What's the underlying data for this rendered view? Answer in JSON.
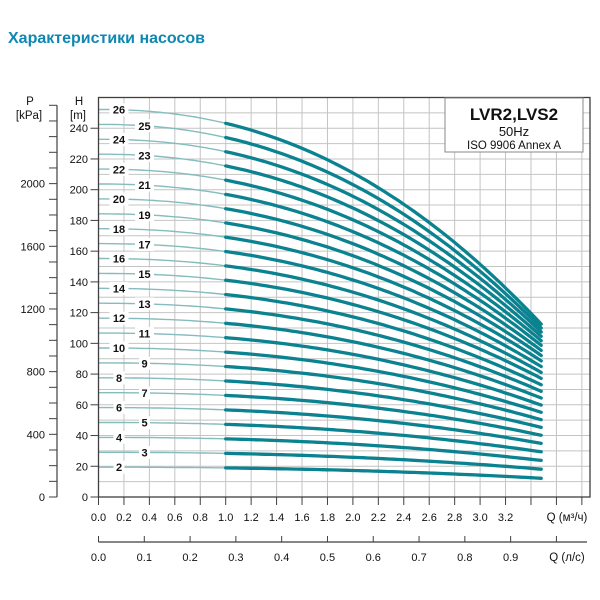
{
  "page": {
    "title": "Характеристики насосов",
    "title_color": "#0e87b2"
  },
  "chart_data": {
    "type": "line",
    "legend": {
      "model": "LVR2,LVS2",
      "frequency": "50Hz",
      "standard": "ISO 9906 Annex A"
    },
    "x_axis_m3h": {
      "label": "Q (м³/ч)",
      "tick_labels": [
        "0.0",
        "0.2",
        "0.4",
        "0.6",
        "0.8",
        "1.0",
        "1.2",
        "1.4",
        "1.6",
        "1.8",
        "2.0",
        "2.2",
        "2.4",
        "2.6",
        "2.8",
        "3.0",
        "3.2"
      ],
      "tick_step": 0.2,
      "ticks_to": 3.8,
      "axis_max": 3.864,
      "grid_step": 0.2
    },
    "x_axis_ls": {
      "label": "Q (л/с)",
      "tick_labels": [
        "0.0",
        "0.1",
        "0.2",
        "0.3",
        "0.4",
        "0.5",
        "0.6",
        "0.7",
        "0.8",
        "0.9"
      ],
      "tick_step": 0.1,
      "ticks_to": 1.0,
      "m3h_per_unit": 3.6
    },
    "y_axis_P": {
      "name": "P",
      "unit": "[kPa]",
      "tick_labels": [
        "0",
        "400",
        "800",
        "1200",
        "1600",
        "2000"
      ],
      "label_step": 400,
      "minor_step": 100,
      "minor_to": 2500,
      "kpa_per_m": 9.8066
    },
    "y_axis_H": {
      "name": "H",
      "unit": "[m]",
      "tick_labels": [
        "0",
        "20",
        "40",
        "60",
        "80",
        "100",
        "120",
        "140",
        "160",
        "180",
        "200",
        "220",
        "240"
      ],
      "label_step": 20,
      "grid_step": 10,
      "axis_max": 260
    },
    "curves": [
      {
        "stages": 2,
        "h0_m": 19.4,
        "h_end_m": 12.2
      },
      {
        "stages": 3,
        "h0_m": 29.1,
        "h_end_m": 18.1
      },
      {
        "stages": 4,
        "h0_m": 38.8,
        "h_end_m": 23.8
      },
      {
        "stages": 5,
        "h0_m": 48.5,
        "h_end_m": 29.4
      },
      {
        "stages": 6,
        "h0_m": 58.2,
        "h_end_m": 34.9
      },
      {
        "stages": 7,
        "h0_m": 67.9,
        "h_end_m": 40.2
      },
      {
        "stages": 8,
        "h0_m": 77.6,
        "h_end_m": 45.3
      },
      {
        "stages": 9,
        "h0_m": 87.3,
        "h_end_m": 50.3
      },
      {
        "stages": 10,
        "h0_m": 97.0,
        "h_end_m": 55.1
      },
      {
        "stages": 11,
        "h0_m": 106.7,
        "h_end_m": 59.8
      },
      {
        "stages": 12,
        "h0_m": 116.4,
        "h_end_m": 64.4
      },
      {
        "stages": 13,
        "h0_m": 126.1,
        "h_end_m": 68.8
      },
      {
        "stages": 14,
        "h0_m": 135.8,
        "h_end_m": 73.0
      },
      {
        "stages": 15,
        "h0_m": 145.5,
        "h_end_m": 77.2
      },
      {
        "stages": 16,
        "h0_m": 155.2,
        "h_end_m": 81.1
      },
      {
        "stages": 17,
        "h0_m": 164.9,
        "h_end_m": 84.9
      },
      {
        "stages": 18,
        "h0_m": 174.6,
        "h_end_m": 88.6
      },
      {
        "stages": 19,
        "h0_m": 184.3,
        "h_end_m": 92.1
      },
      {
        "stages": 20,
        "h0_m": 194.0,
        "h_end_m": 95.4
      },
      {
        "stages": 21,
        "h0_m": 203.7,
        "h_end_m": 98.7
      },
      {
        "stages": 22,
        "h0_m": 213.4,
        "h_end_m": 101.7
      },
      {
        "stages": 23,
        "h0_m": 223.1,
        "h_end_m": 104.6
      },
      {
        "stages": 24,
        "h0_m": 232.8,
        "h_end_m": 107.4
      },
      {
        "stages": 25,
        "h0_m": 242.5,
        "h_end_m": 110.0
      },
      {
        "stages": 26,
        "h0_m": 252.2,
        "h_end_m": 112.5
      }
    ],
    "q_start": 0.0,
    "q_thick_start": 1.0,
    "q_end": 3.48,
    "droop_exponent": 2.2,
    "colors": {
      "curve_thin": "#85bcbe",
      "curve_thick": "#0b8290",
      "grid": "#c4c4c4",
      "frame": "#3f3f3f",
      "text": "#111111"
    }
  }
}
